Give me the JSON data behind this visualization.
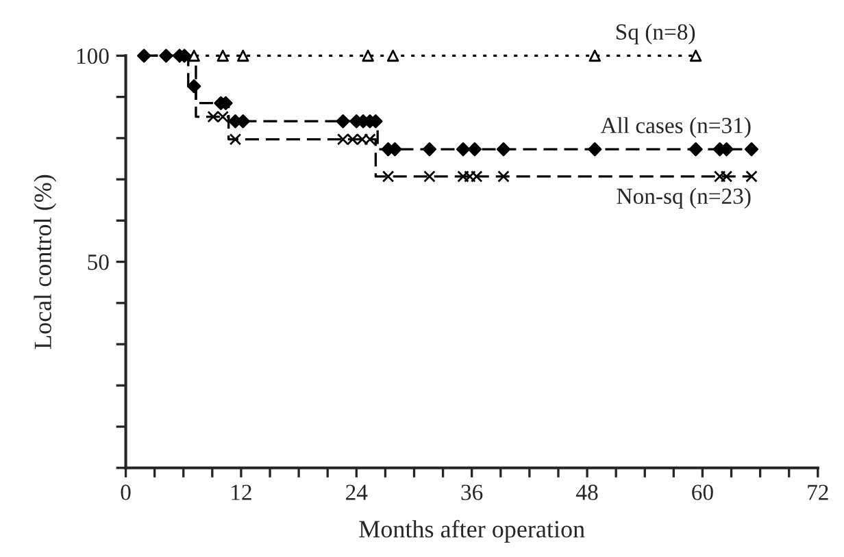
{
  "chart_data": {
    "type": "step",
    "xlabel": "Months after operation",
    "ylabel": "Local control (%)",
    "xlim": [
      0,
      72
    ],
    "ylim": [
      0,
      100
    ],
    "xticks": [
      0,
      {
        "value": 3,
        "label": null
      },
      {
        "value": 6,
        "label": null
      },
      {
        "value": 9,
        "label": null
      },
      12,
      {
        "value": 15,
        "label": null
      },
      {
        "value": 18,
        "label": null
      },
      {
        "value": 21,
        "label": null
      },
      24,
      {
        "value": 27,
        "label": null
      },
      {
        "value": 30,
        "label": null
      },
      {
        "value": 33,
        "label": null
      },
      36,
      {
        "value": 39,
        "label": null
      },
      {
        "value": 42,
        "label": null
      },
      {
        "value": 45,
        "label": null
      },
      48,
      {
        "value": 51,
        "label": null
      },
      {
        "value": 54,
        "label": null
      },
      {
        "value": 57,
        "label": null
      },
      60,
      {
        "value": 63,
        "label": null
      },
      {
        "value": 66,
        "label": null
      },
      {
        "value": 69,
        "label": null
      },
      72
    ],
    "yticks": [
      {
        "value": 0,
        "label": null
      },
      {
        "value": 10,
        "label": null
      },
      {
        "value": 20,
        "label": null
      },
      {
        "value": 30,
        "label": null
      },
      {
        "value": 40,
        "label": null
      },
      50,
      {
        "value": 60,
        "label": null
      },
      {
        "value": 70,
        "label": null
      },
      {
        "value": 80,
        "label": null
      },
      {
        "value": 90,
        "label": null
      },
      100
    ],
    "grid": false,
    "legend": false,
    "series": [
      {
        "name": "Sq (n=8)",
        "line_style": "dotted",
        "color": "#000000",
        "x": [
          1.9,
          59.3
        ],
        "values": [
          100,
          100
        ]
      },
      {
        "type": "scatter",
        "marker": "triangle",
        "color": "#000000",
        "x": [
          7.1,
          10.1,
          12.2,
          25.2,
          27.8,
          48.8,
          59.3
        ],
        "values": [
          100,
          100,
          100,
          100,
          100,
          100,
          100
        ]
      },
      {
        "name": "All cases (n=31)",
        "line_style": "dashed",
        "color": "#000000",
        "x": [
          1.9,
          6.5,
          7.3,
          10.7,
          26.2,
          65.1
        ],
        "values": [
          100,
          92.6,
          88.5,
          84.1,
          77.3,
          77.3
        ]
      },
      {
        "type": "scatter",
        "marker": "diamond",
        "color": "#000000",
        "x": [
          1.9,
          4.2,
          5.6,
          6.1,
          7.1,
          9.9,
          10.4,
          11.4,
          12.2,
          22.6,
          24.0,
          24.7,
          25.4,
          26.0,
          27.3,
          28.0,
          31.6,
          35.1,
          36.3,
          39.3,
          48.8,
          59.3,
          61.8,
          62.5,
          65.1
        ],
        "values": [
          100,
          100,
          100,
          100,
          92.6,
          88.5,
          88.5,
          84.1,
          84.1,
          84.1,
          84.1,
          84.1,
          84.1,
          84.1,
          77.3,
          77.3,
          77.3,
          77.3,
          77.3,
          77.3,
          77.3,
          77.3,
          77.3,
          77.3,
          77.3
        ]
      },
      {
        "name": "Non-sq (n=23)",
        "line_style": "dashed",
        "color": "#000000",
        "x": [
          1.9,
          7.3,
          10.7,
          26.0,
          65.1
        ],
        "values": [
          100,
          85.2,
          79.7,
          70.7,
          70.7
        ]
      },
      {
        "type": "scatter",
        "marker": "cross",
        "color": "#000000",
        "x": [
          9.1,
          10.1,
          11.4,
          22.6,
          23.6,
          24.6,
          25.4,
          27.3,
          31.6,
          35.1,
          35.8,
          36.5,
          39.3,
          61.8,
          62.5,
          65.1
        ],
        "values": [
          85.2,
          85.2,
          79.7,
          79.7,
          79.7,
          79.7,
          79.7,
          70.7,
          70.7,
          70.7,
          70.7,
          70.7,
          70.7,
          70.7,
          70.7,
          70.7
        ]
      }
    ]
  }
}
